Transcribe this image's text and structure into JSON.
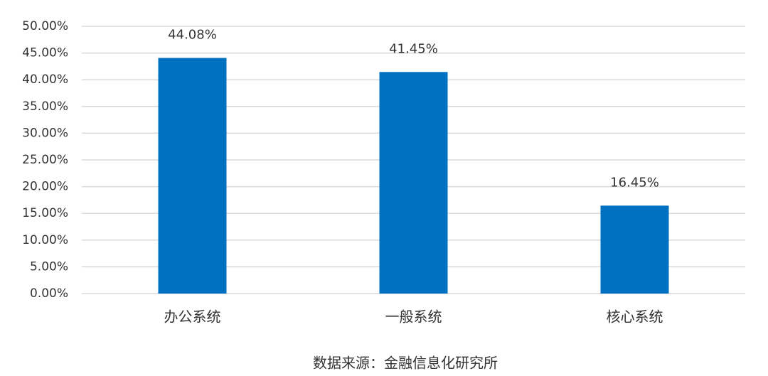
{
  "chart_data": {
    "type": "bar",
    "categories": [
      "办公系统",
      "一般系统",
      "核心系统"
    ],
    "values": [
      44.08,
      41.45,
      16.45
    ],
    "value_labels": [
      "44.08%",
      "41.45%",
      "16.45%"
    ],
    "color": "#0070c0",
    "ylim": [
      0,
      50
    ],
    "yticks": [
      {
        "value": 0,
        "label": "0.00%"
      },
      {
        "value": 5,
        "label": "5.00%"
      },
      {
        "value": 10,
        "label": "10.00%"
      },
      {
        "value": 15,
        "label": "15.00%"
      },
      {
        "value": 20,
        "label": "20.00%"
      },
      {
        "value": 25,
        "label": "25.00%"
      },
      {
        "value": 30,
        "label": "30.00%"
      },
      {
        "value": 35,
        "label": "35.00%"
      },
      {
        "value": 40,
        "label": "40.00%"
      },
      {
        "value": 45,
        "label": "45.00%"
      },
      {
        "value": 50,
        "label": "50.00%"
      }
    ],
    "grid": true,
    "source": "数据来源：金融信息化研究所"
  }
}
